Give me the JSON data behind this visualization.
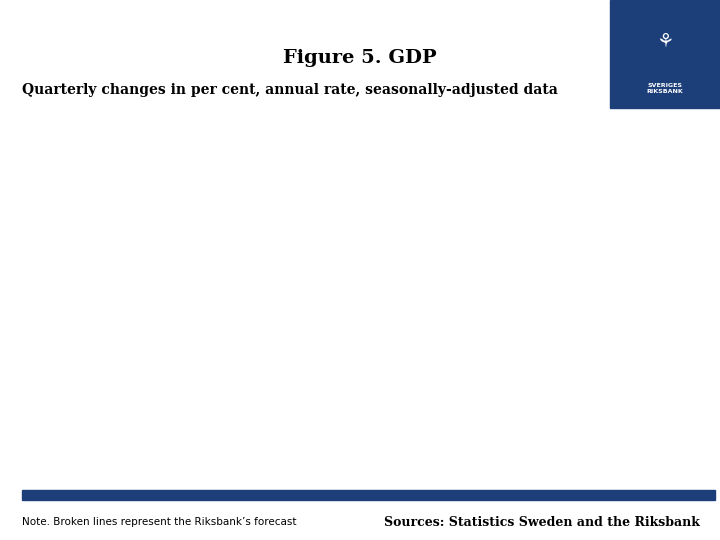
{
  "title": "Figure 5. GDP",
  "subtitle": "Quarterly changes in per cent, annual rate, seasonally-adjusted data",
  "note_text": "Note. Broken lines represent the Riksbank’s forecast",
  "sources_text": "Sources: Statistics Sweden and the Riksbank",
  "background_color": "#ffffff",
  "logo_box_color": "#1c3f7a",
  "bar_color": "#1c3f7a",
  "title_fontsize": 14,
  "subtitle_fontsize": 10,
  "note_fontsize": 7.5,
  "sources_fontsize": 9
}
